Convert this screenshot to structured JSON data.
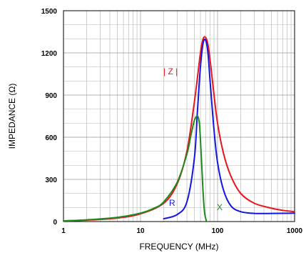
{
  "chart_data": {
    "type": "line",
    "title": "",
    "xlabel": "FREQUENCY (MHz)",
    "ylabel": "IMPEDANCE (Ω)",
    "x_scale": "log",
    "xlim": [
      1,
      1000
    ],
    "ylim": [
      0,
      1500
    ],
    "grid": true,
    "xticks": [
      1,
      10,
      100,
      1000
    ],
    "xtick_labels": [
      "1",
      "10",
      "100",
      "1000"
    ],
    "yticks": [
      0,
      300,
      600,
      900,
      1200,
      1500
    ],
    "ytick_labels": [
      "0",
      "300",
      "600",
      "900",
      "1200",
      "1500"
    ],
    "series": [
      {
        "name": "| Z |",
        "color": "#e8141e",
        "x": [
          1,
          2,
          5,
          10,
          20,
          30,
          40,
          50,
          60,
          65,
          70,
          75,
          80,
          90,
          100,
          120,
          150,
          200,
          300,
          500,
          700,
          1000
        ],
        "y": [
          5,
          10,
          25,
          55,
          130,
          270,
          500,
          850,
          1200,
          1300,
          1310,
          1260,
          1150,
          900,
          700,
          480,
          320,
          200,
          130,
          95,
          80,
          70
        ]
      },
      {
        "name": "R",
        "color": "#1515e0",
        "x": [
          20,
          30,
          40,
          50,
          55,
          60,
          65,
          70,
          75,
          80,
          90,
          100,
          120,
          150,
          200,
          300,
          500,
          1000
        ],
        "y": [
          20,
          50,
          140,
          450,
          800,
          1100,
          1270,
          1290,
          1200,
          1000,
          650,
          420,
          220,
          110,
          70,
          58,
          58,
          60
        ]
      },
      {
        "name": "X",
        "color": "#1e8a1e",
        "x": [
          1,
          2,
          5,
          10,
          15,
          20,
          30,
          40,
          45,
          50,
          55,
          58,
          60,
          63,
          65,
          68,
          72
        ],
        "y": [
          5,
          12,
          30,
          60,
          95,
          140,
          280,
          480,
          610,
          720,
          750,
          700,
          580,
          350,
          200,
          60,
          0
        ]
      }
    ]
  }
}
